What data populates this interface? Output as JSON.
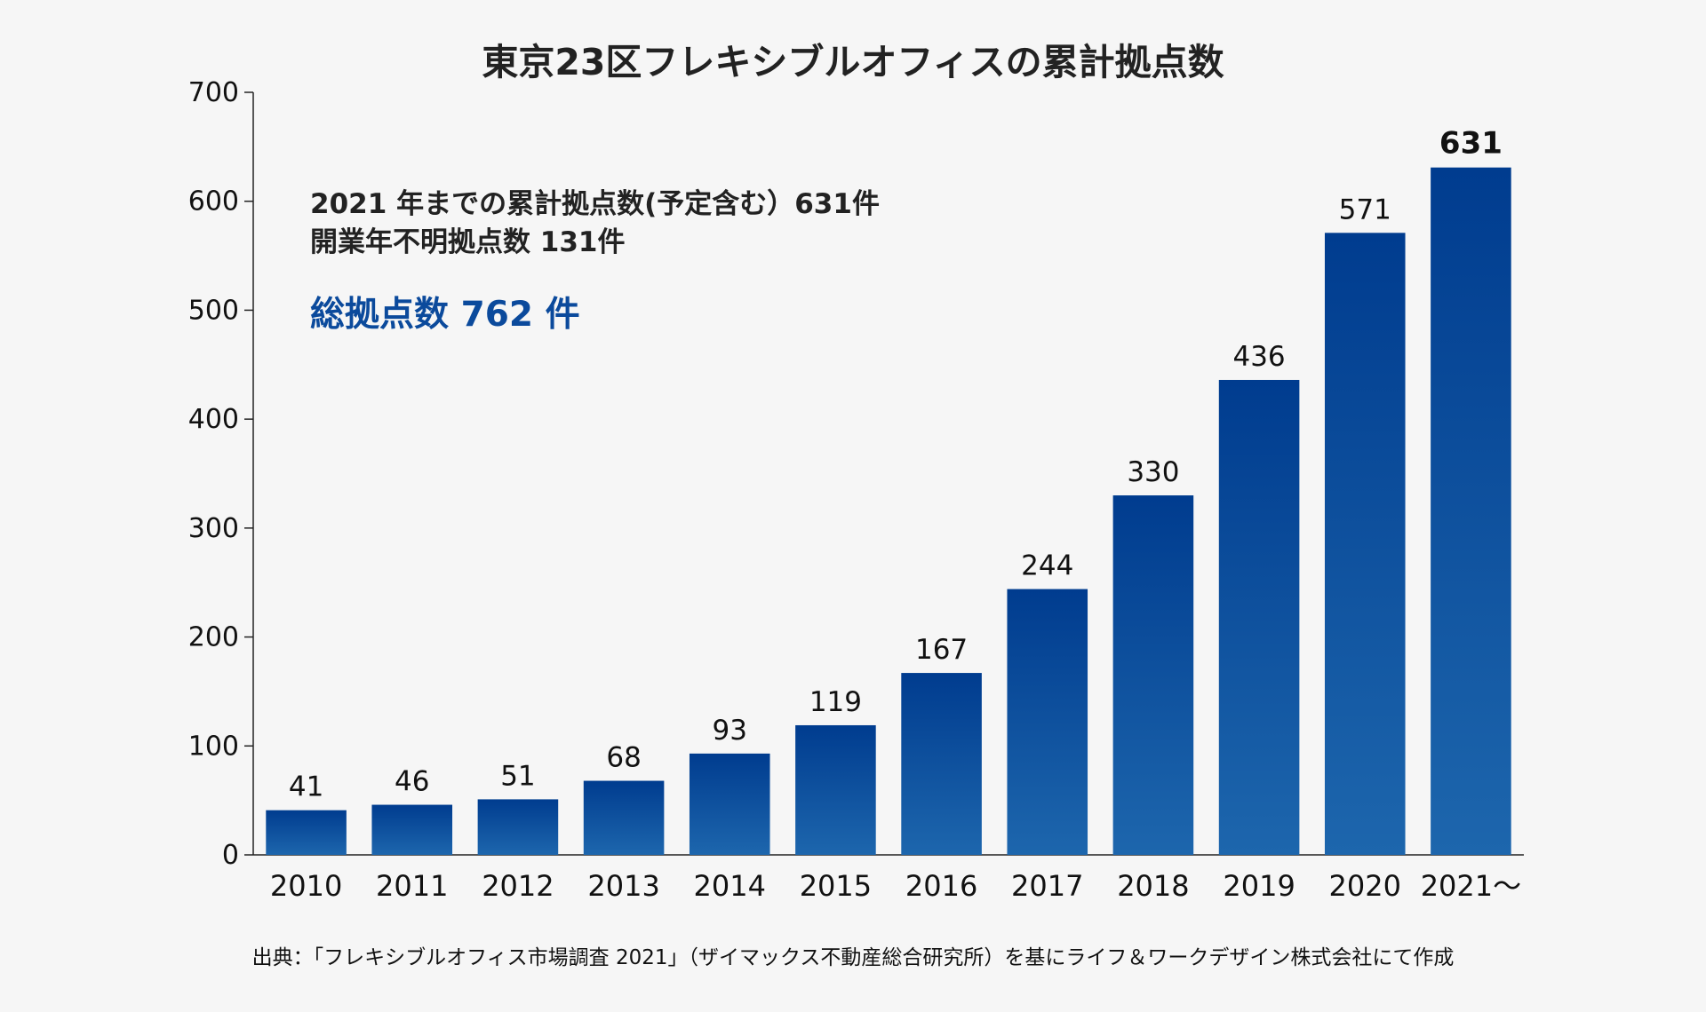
{
  "chart_data": {
    "type": "bar",
    "title": "東京23区フレキシブルオフィスの累計拠点数",
    "categories": [
      "2010",
      "2011",
      "2012",
      "2013",
      "2014",
      "2015",
      "2016",
      "2017",
      "2018",
      "2019",
      "2020",
      "2021〜"
    ],
    "values": [
      41,
      46,
      51,
      68,
      93,
      119,
      167,
      244,
      330,
      436,
      571,
      631
    ],
    "value_labels": [
      "41",
      "46",
      "51",
      "68",
      "93",
      "119",
      "167",
      "244",
      "330",
      "436",
      "571",
      "631"
    ],
    "highlighted_value_index": 11,
    "ylim": [
      0,
      700
    ],
    "yticks": [
      0,
      100,
      200,
      300,
      400,
      500,
      600,
      700
    ],
    "ytick_labels": [
      "0",
      "100",
      "200",
      "300",
      "400",
      "500",
      "600",
      "700"
    ],
    "xlabel": "",
    "ylabel": "",
    "grid": false,
    "legend": "none",
    "bar_color_top": "#003c8f",
    "bar_color_bottom": "#1d66ad",
    "annotations": {
      "line1": "2021 年までの累計拠点数(予定含む）631件",
      "line2": "開業年不明拠点数 131件",
      "total": "総拠点数 762 件",
      "total_color": "#0b4a9c"
    },
    "source": "出典：「フレキシブルオフィス市場調査 2021」（ザイマックス不動産総合研究所）を基にライフ＆ワークデザイン株式会社にて作成"
  }
}
